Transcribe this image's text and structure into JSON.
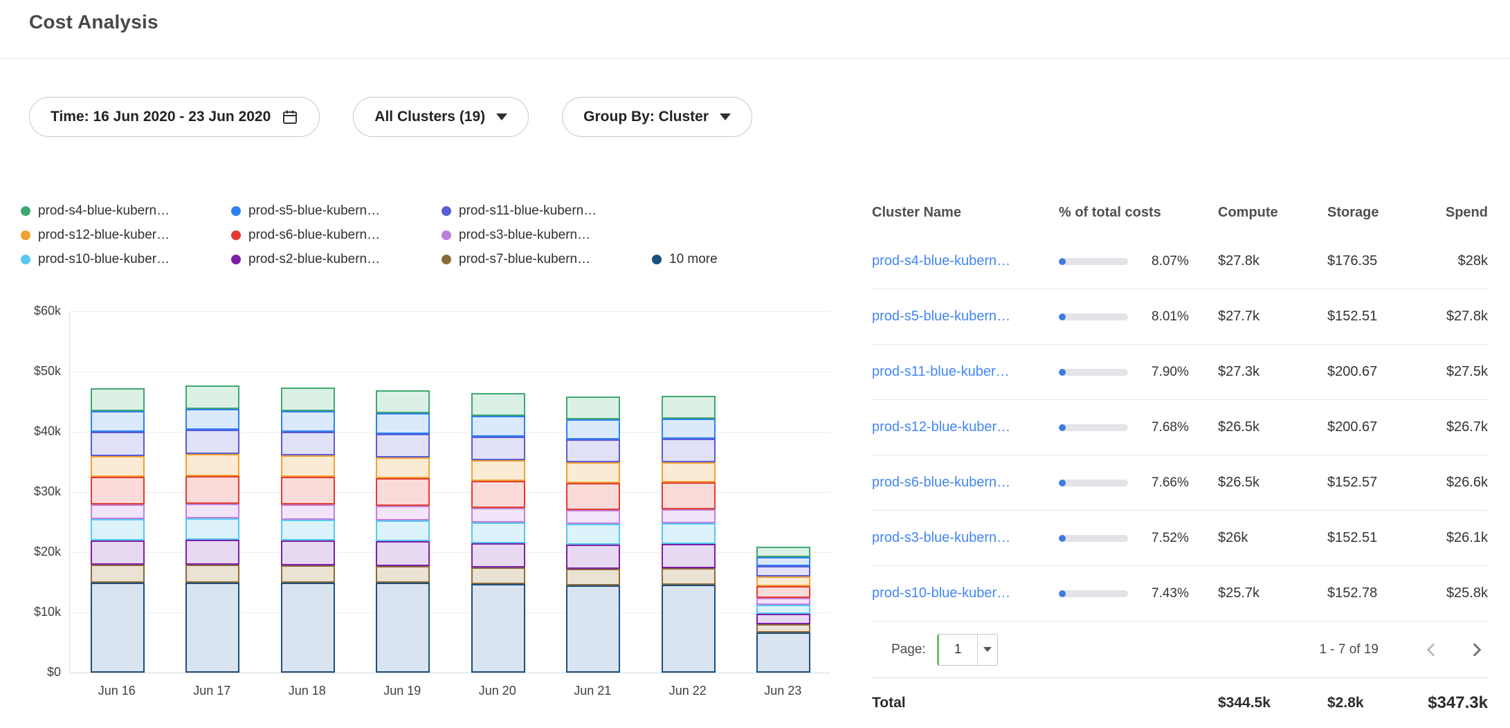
{
  "page": {
    "title": "Cost Analysis"
  },
  "filters": {
    "time_label": "Time: 16 Jun 2020 - 23 Jun 2020",
    "clusters_label": "All Clusters (19)",
    "group_by_label": "Group By: Cluster"
  },
  "legend": {
    "items": [
      {
        "label": "prod-s4-blue-kubern…",
        "color": "#3FA870"
      },
      {
        "label": "prod-s5-blue-kubern…",
        "color": "#2D7FF0"
      },
      {
        "label": "prod-s11-blue-kubern…",
        "color": "#5A5BD7"
      },
      {
        "label": "prod-s12-blue-kuber…",
        "color": "#F0A22E"
      },
      {
        "label": "prod-s6-blue-kubern…",
        "color": "#E23A32"
      },
      {
        "label": "prod-s3-blue-kubern…",
        "color": "#C07FDA"
      },
      {
        "label": "prod-s10-blue-kuber…",
        "color": "#54C8F0"
      },
      {
        "label": "prod-s2-blue-kubern…",
        "color": "#7A1FA8"
      },
      {
        "label": "prod-s7-blue-kubern…",
        "color": "#8A6A3B"
      },
      {
        "label": "10 more",
        "color": "#1B4F7E"
      }
    ]
  },
  "chart_data": {
    "type": "bar",
    "stacked": true,
    "title": "",
    "xlabel": "",
    "ylabel": "",
    "grid": true,
    "legend_position": "top",
    "x": [
      "Jun 16",
      "Jun 17",
      "Jun 18",
      "Jun 19",
      "Jun 20",
      "Jun 21",
      "Jun 22",
      "Jun 23"
    ],
    "ylim": [
      0,
      60000
    ],
    "yticks": [
      "$0",
      "$10k",
      "$20k",
      "$30k",
      "$40k",
      "$50k",
      "$60k"
    ],
    "stack_order": "last_series_at_bottom",
    "series": [
      {
        "name": "prod-s4-blue-kubern…",
        "color": "#3FA870",
        "fill": "#DCF1E5",
        "values": [
          3900,
          3900,
          3900,
          3850,
          3800,
          3800,
          3800,
          1700
        ]
      },
      {
        "name": "prod-s5-blue-kubern…",
        "color": "#2D7FF0",
        "fill": "#DBE9FC",
        "values": [
          3400,
          3500,
          3450,
          3400,
          3400,
          3350,
          3350,
          1500
        ]
      },
      {
        "name": "prod-s11-blue-kubern…",
        "color": "#5A5BD7",
        "fill": "#E1E1F8",
        "values": [
          4000,
          4000,
          4000,
          3950,
          3900,
          3850,
          3850,
          1750
        ]
      },
      {
        "name": "prod-s12-blue-kuber…",
        "color": "#F0A22E",
        "fill": "#FCEBD4",
        "values": [
          3500,
          3600,
          3550,
          3500,
          3450,
          3400,
          3400,
          1550
        ]
      },
      {
        "name": "prod-s6-blue-kubern…",
        "color": "#E23A32",
        "fill": "#FADBD9",
        "values": [
          4600,
          4600,
          4600,
          4550,
          4500,
          4450,
          4450,
          2000
        ]
      },
      {
        "name": "prod-s3-blue-kubern…",
        "color": "#C07FDA",
        "fill": "#F2E4F9",
        "values": [
          2400,
          2500,
          2450,
          2400,
          2400,
          2350,
          2350,
          1100
        ]
      },
      {
        "name": "prod-s10-blue-kuber…",
        "color": "#54C8F0",
        "fill": "#DDF3FB",
        "values": [
          3500,
          3500,
          3500,
          3450,
          3400,
          3400,
          3400,
          1500
        ]
      },
      {
        "name": "prod-s2-blue-kubern…",
        "color": "#7A1FA8",
        "fill": "#E7D9F1",
        "values": [
          4100,
          4200,
          4150,
          4100,
          4050,
          4000,
          4000,
          1800
        ]
      },
      {
        "name": "prod-s7-blue-kubern…",
        "color": "#8A6A3B",
        "fill": "#EAE2D3",
        "values": [
          2900,
          2900,
          2900,
          2850,
          2800,
          2800,
          2800,
          1300
        ]
      },
      {
        "name": "10 more",
        "color": "#1B4F7E",
        "fill": "#D9E4F0",
        "values": [
          15000,
          15000,
          14900,
          14900,
          14700,
          14500,
          14600,
          6700
        ]
      }
    ]
  },
  "table": {
    "columns": [
      "Cluster Name",
      "% of total costs",
      "Compute",
      "Storage",
      "Spend"
    ],
    "rows": [
      {
        "name": "prod-s4-blue-kubern…",
        "percent": "8.07%",
        "percent_value": 8.07,
        "compute": "$27.8k",
        "storage": "$176.35",
        "spend": "$28k"
      },
      {
        "name": "prod-s5-blue-kubern…",
        "percent": "8.01%",
        "percent_value": 8.01,
        "compute": "$27.7k",
        "storage": "$152.51",
        "spend": "$27.8k"
      },
      {
        "name": "prod-s11-blue-kuber…",
        "percent": "7.90%",
        "percent_value": 7.9,
        "compute": "$27.3k",
        "storage": "$200.67",
        "spend": "$27.5k"
      },
      {
        "name": "prod-s12-blue-kuber…",
        "percent": "7.68%",
        "percent_value": 7.68,
        "compute": "$26.5k",
        "storage": "$200.67",
        "spend": "$26.7k"
      },
      {
        "name": "prod-s6-blue-kubern…",
        "percent": "7.66%",
        "percent_value": 7.66,
        "compute": "$26.5k",
        "storage": "$152.57",
        "spend": "$26.6k"
      },
      {
        "name": "prod-s3-blue-kubern…",
        "percent": "7.52%",
        "percent_value": 7.52,
        "compute": "$26k",
        "storage": "$152.51",
        "spend": "$26.1k"
      },
      {
        "name": "prod-s10-blue-kuber…",
        "percent": "7.43%",
        "percent_value": 7.43,
        "compute": "$25.7k",
        "storage": "$152.78",
        "spend": "$25.8k"
      }
    ],
    "pagination": {
      "label": "Page:",
      "page": "1",
      "range": "1 - 7 of 19"
    },
    "total": {
      "label": "Total",
      "compute": "$344.5k",
      "storage": "$2.8k",
      "spend": "$347.3k"
    }
  },
  "colors": {
    "link": "#4285F4",
    "progress_fill": "#3E7BDE",
    "progress_track": "#E3E3E8"
  }
}
